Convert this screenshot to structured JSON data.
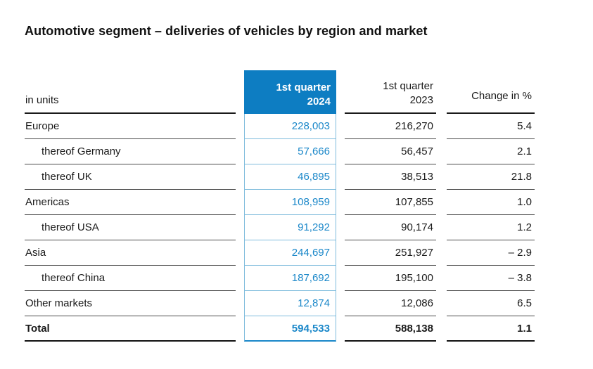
{
  "title": "Automotive segment – deliveries of vehicles by region and market",
  "table": {
    "unit_label": "in units",
    "header": {
      "q1_2024": {
        "line1": "1st quarter",
        "line2": "2024"
      },
      "q1_2023": {
        "line1": "1st quarter",
        "line2": "2023"
      },
      "change": {
        "label": "Change in %"
      }
    },
    "rows": [
      {
        "label": "Europe",
        "q1_2024": "228,003",
        "q1_2023": "216,270",
        "change": "5.4"
      },
      {
        "label": "thereof Germany",
        "q1_2024": "57,666",
        "q1_2023": "56,457",
        "change": "2.1"
      },
      {
        "label": "thereof UK",
        "q1_2024": "46,895",
        "q1_2023": "38,513",
        "change": "21.8"
      },
      {
        "label": "Americas",
        "q1_2024": "108,959",
        "q1_2023": "107,855",
        "change": "1.0"
      },
      {
        "label": "thereof USA",
        "q1_2024": "91,292",
        "q1_2023": "90,174",
        "change": "1.2"
      },
      {
        "label": "Asia",
        "q1_2024": "244,697",
        "q1_2023": "251,927",
        "change": "– 2.9"
      },
      {
        "label": "thereof China",
        "q1_2024": "187,692",
        "q1_2023": "195,100",
        "change": "– 3.8"
      },
      {
        "label": "Other markets",
        "q1_2024": "12,874",
        "q1_2023": "12,086",
        "change": "6.5"
      },
      {
        "label": "Total",
        "q1_2024": "594,533",
        "q1_2023": "588,138",
        "change": "1.1"
      }
    ]
  },
  "colors": {
    "header_blue": "#0d7dc2",
    "value_blue": "#1a87c9",
    "light_blue_line": "#7fbcdc",
    "row_line": "#4a4a4a",
    "strong_line": "#1a1a1a"
  }
}
